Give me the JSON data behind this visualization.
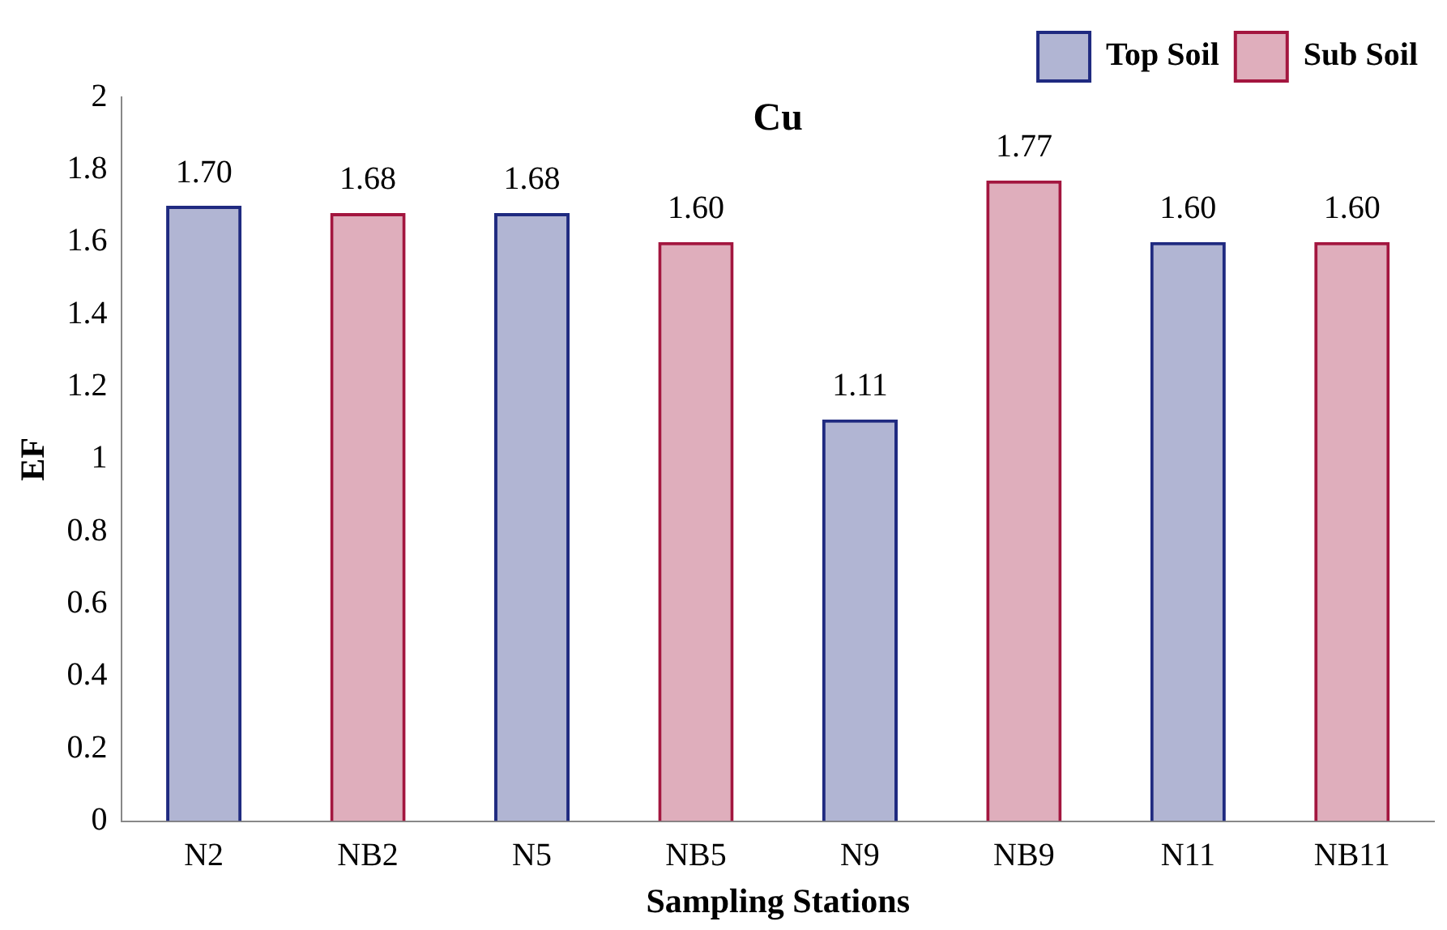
{
  "chart_data": {
    "type": "bar",
    "title": "Cu",
    "xlabel": "Sampling Stations",
    "ylabel": "EF",
    "categories": [
      "N2",
      "NB2",
      "N5",
      "NB5",
      "N9",
      "NB9",
      "N11",
      "NB11"
    ],
    "series": [
      {
        "name": "Top Soil",
        "color": "#1f2a80",
        "values": [
          1.7,
          null,
          1.68,
          null,
          1.11,
          null,
          1.6,
          null
        ],
        "value_labels": [
          "1.70",
          null,
          "1.68",
          null,
          "1.11",
          null,
          "1.60",
          null
        ]
      },
      {
        "name": "Sub Soil",
        "color": "#a3163f",
        "values": [
          null,
          1.68,
          null,
          1.6,
          null,
          1.77,
          null,
          1.6
        ],
        "value_labels": [
          null,
          "1.68",
          null,
          "1.60",
          null,
          "1.77",
          null,
          "1.60"
        ]
      }
    ],
    "ylim": [
      0,
      2
    ],
    "yticks": [
      0,
      0.2,
      0.4,
      0.6,
      0.8,
      1,
      1.2,
      1.4,
      1.6,
      1.8,
      2
    ],
    "grid": false,
    "legend": "top"
  }
}
